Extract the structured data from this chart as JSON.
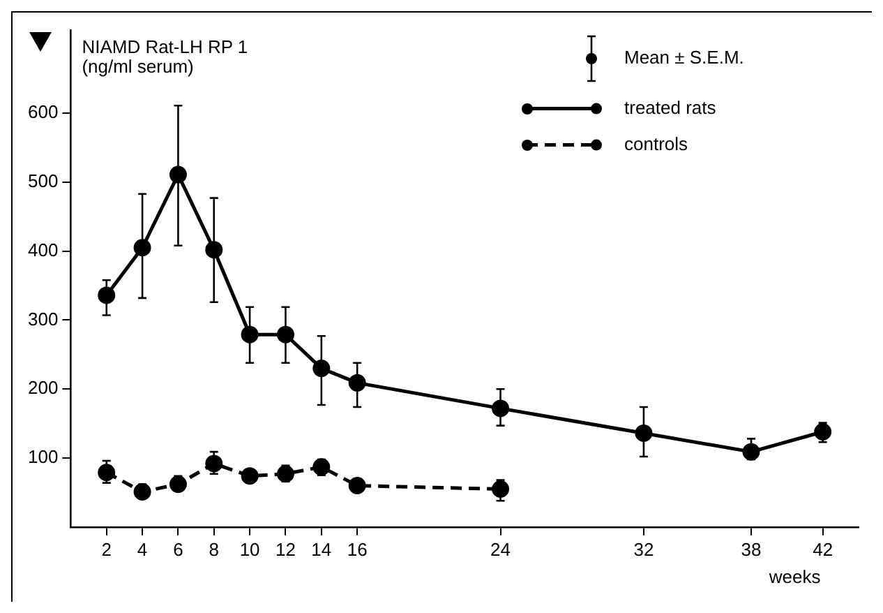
{
  "chart_data": {
    "type": "line",
    "ylabel": "NIAMD Rat-LH RP 1 (ng/ml serum)",
    "xlabel": "weeks",
    "annotations": [
      "Mean ± S.E.M."
    ],
    "xlim": [
      0,
      44
    ],
    "xticks": [
      2,
      4,
      6,
      8,
      10,
      12,
      14,
      16,
      24,
      32,
      38,
      42
    ],
    "ylim": [
      0,
      720
    ],
    "yticks": [
      100,
      200,
      300,
      400,
      500,
      600
    ],
    "grid": false,
    "legend": "top right",
    "marker": "circle",
    "series": [
      {
        "name": "treated rats",
        "color": "#000000",
        "line_style": "solid",
        "x": [
          2,
          4,
          6,
          8,
          10,
          12,
          14,
          16,
          24,
          32,
          38,
          42
        ],
        "values": [
          336,
          405,
          511,
          402,
          279,
          279,
          230,
          209,
          172,
          136,
          109,
          138
        ],
        "errors": [
          [
            307,
            358
          ],
          [
            332,
            483
          ],
          [
            408,
            611
          ],
          [
            326,
            477
          ],
          [
            238,
            319
          ],
          [
            238,
            319
          ],
          [
            177,
            277
          ],
          [
            174,
            238
          ],
          [
            147,
            200
          ],
          [
            102,
            174
          ],
          [
            98,
            128
          ],
          [
            123,
            151
          ]
        ]
      },
      {
        "name": "controls",
        "color": "#000000",
        "line_style": "dashed",
        "x": [
          2,
          4,
          6,
          8,
          10,
          12,
          14,
          16,
          24
        ],
        "values": [
          79,
          51,
          62,
          92,
          74,
          77,
          87,
          60,
          55
        ],
        "errors": [
          [
            64,
            96
          ],
          [
            43,
            62
          ],
          [
            53,
            74
          ],
          [
            77,
            109
          ],
          [
            64,
            81
          ],
          [
            66,
            89
          ],
          [
            75,
            98
          ],
          [
            53,
            70
          ],
          [
            38,
            68
          ]
        ]
      }
    ]
  }
}
